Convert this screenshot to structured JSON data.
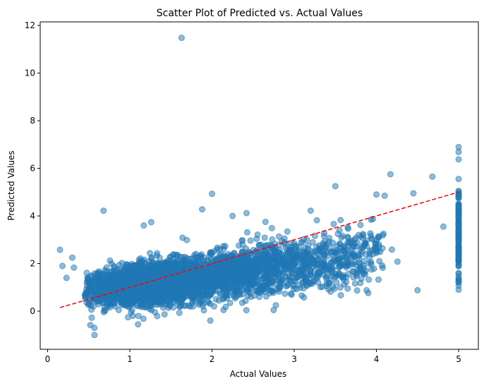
{
  "chart_data": {
    "type": "scatter",
    "title": "Scatter Plot of Predicted vs. Actual Values",
    "xlabel": "Actual Values",
    "ylabel": "Predicted Values",
    "xlim": [
      -0.09,
      5.24
    ],
    "ylim": [
      -1.6,
      12.15
    ],
    "xticks": [
      0,
      1,
      2,
      3,
      4,
      5
    ],
    "yticks": [
      0,
      2,
      4,
      6,
      8,
      10,
      12
    ],
    "grid": false,
    "legend": null,
    "colors": {
      "points": "#1f77b4",
      "reference_line": "#ff0000"
    },
    "reference_line": {
      "style": "dashed",
      "x": [
        0.15,
        5.0
      ],
      "y": [
        0.15,
        5.0
      ]
    },
    "series": [
      {
        "point_count_estimate": 4000,
        "trend": {
          "slope": 0.44,
          "intercept": 0.62,
          "x_range": [
            0.15,
            5.0
          ]
        },
        "outliers": [
          {
            "x": 1.63,
            "y": 11.48
          },
          {
            "x": 0.15,
            "y": 2.58
          },
          {
            "x": 0.18,
            "y": 1.9
          },
          {
            "x": 0.23,
            "y": 1.4
          },
          {
            "x": 0.3,
            "y": 2.25
          },
          {
            "x": 0.32,
            "y": 1.83
          },
          {
            "x": 0.52,
            "y": -0.58
          },
          {
            "x": 0.57,
            "y": -0.7
          },
          {
            "x": 0.57,
            "y": -1.0
          },
          {
            "x": 0.68,
            "y": 4.22
          },
          {
            "x": 1.17,
            "y": 3.6
          },
          {
            "x": 1.26,
            "y": 3.74
          },
          {
            "x": 1.88,
            "y": 4.28
          },
          {
            "x": 2.0,
            "y": 4.93
          },
          {
            "x": 2.25,
            "y": 4.0
          },
          {
            "x": 2.42,
            "y": 4.12
          },
          {
            "x": 2.14,
            "y": 0.05
          },
          {
            "x": 2.75,
            "y": 0.05
          },
          {
            "x": 3.2,
            "y": 4.22
          },
          {
            "x": 3.5,
            "y": 5.25
          },
          {
            "x": 4.0,
            "y": 4.9
          },
          {
            "x": 4.1,
            "y": 4.85
          },
          {
            "x": 4.17,
            "y": 5.75
          },
          {
            "x": 4.45,
            "y": 4.95
          },
          {
            "x": 4.68,
            "y": 5.65
          },
          {
            "x": 3.88,
            "y": 0.88
          },
          {
            "x": 4.5,
            "y": 0.88
          },
          {
            "x": 3.65,
            "y": 0.95
          },
          {
            "x": 1.1,
            "y": -0.55
          }
        ],
        "capped_column": {
          "x": 5.0,
          "y_range": [
            0.85,
            7.25
          ]
        }
      }
    ]
  }
}
